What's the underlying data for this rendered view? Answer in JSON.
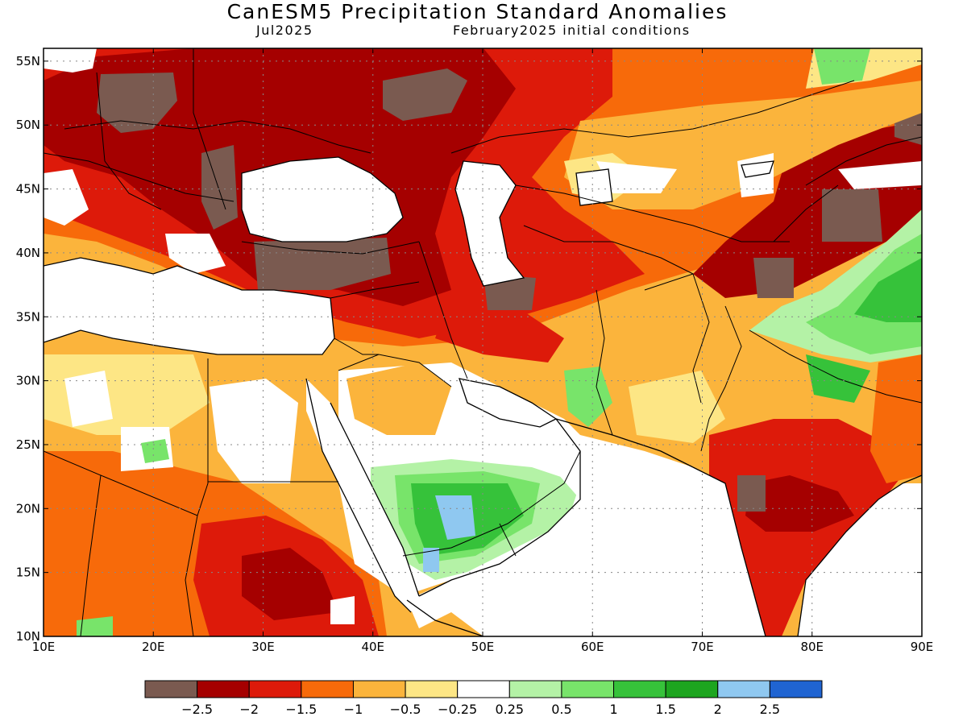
{
  "title": "CanESM5 Precipitation Standard Anomalies",
  "valid_month": "Jul2025",
  "initial_conditions": "February2025 initial conditions",
  "map": {
    "lon_range": [
      10,
      90
    ],
    "lat_range": [
      10,
      56
    ],
    "lon_ticks": [
      "10E",
      "20E",
      "30E",
      "40E",
      "50E",
      "60E",
      "70E",
      "80E",
      "90E"
    ],
    "lat_ticks": [
      "10N",
      "15N",
      "20N",
      "25N",
      "30N",
      "35N",
      "40N",
      "45N",
      "50N",
      "55N"
    ],
    "gridlines": "dotted"
  },
  "legend": {
    "labels": [
      "-2.5",
      "-2",
      "-1.5",
      "-1",
      "-0.5",
      "-0.25",
      "0.25",
      "0.5",
      "1",
      "1.5",
      "2",
      "2.5"
    ],
    "colors": [
      "#7a5a50",
      "#a50000",
      "#dd1a0a",
      "#f76a0a",
      "#fbb43c",
      "#fde685",
      "#ffffff",
      "#b4f2a6",
      "#78e46a",
      "#36c23a",
      "#1da51f",
      "#8fc8f0",
      "#1f64d2"
    ]
  },
  "colors": {
    "sea_white": "#ffffff",
    "coast": "#000000"
  }
}
